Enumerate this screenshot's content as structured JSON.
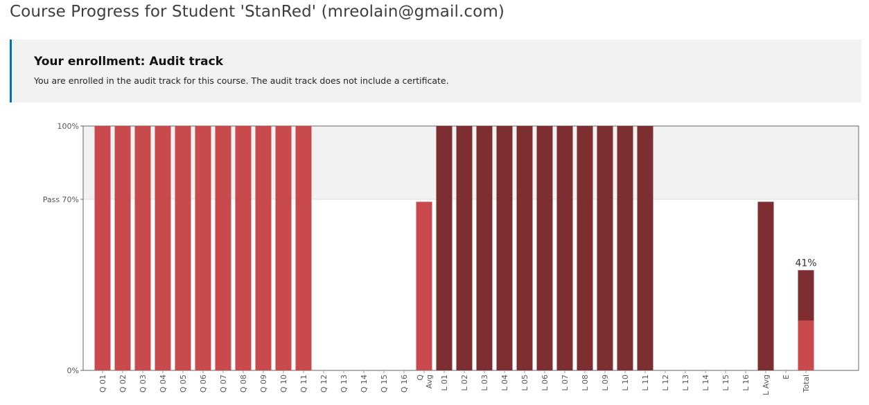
{
  "page": {
    "title": "Course Progress for Student 'StanRed' (mreolain@gmail.com)"
  },
  "enrollment": {
    "title": "Your enrollment: Audit track",
    "message": "You are enrolled in the audit track for this course. The audit track does not include a certificate."
  },
  "chart_data": {
    "type": "bar",
    "categories": [
      "Q 01",
      "Q 02",
      "Q 03",
      "Q 04",
      "Q 05",
      "Q 06",
      "Q 07",
      "Q 08",
      "Q 09",
      "Q 10",
      "Q 11",
      "Q 12",
      "Q 13",
      "Q 14",
      "Q 15",
      "Q 16",
      "Q Avg",
      "L 01",
      "L 02",
      "L 03",
      "L 04",
      "L 05",
      "L 06",
      "L 07",
      "L 08",
      "L 09",
      "L 10",
      "L 11",
      "L 12",
      "L 13",
      "L 14",
      "L 15",
      "L 16",
      "L Avg",
      "E",
      "Total"
    ],
    "values": [
      100,
      100,
      100,
      100,
      100,
      100,
      100,
      100,
      100,
      100,
      100,
      0,
      0,
      0,
      0,
      0,
      69,
      100,
      100,
      100,
      100,
      100,
      100,
      100,
      100,
      100,
      100,
      100,
      0,
      0,
      0,
      0,
      0,
      69,
      0,
      null
    ],
    "total": {
      "stack": [
        {
          "component": "Q",
          "value": 20.4,
          "color": "#c84a4c"
        },
        {
          "component": "L",
          "value": 20.6,
          "color": "#7d2e31"
        }
      ],
      "label": "41%"
    },
    "y_ticks": [
      {
        "value": 100,
        "label": "100%"
      },
      {
        "value": 70,
        "label": "Pass 70%"
      },
      {
        "value": 0,
        "label": "0%"
      }
    ],
    "ylim": [
      0,
      100
    ],
    "pass_threshold": 70,
    "colors": {
      "Q": "#c84a4c",
      "L": "#7d2e31",
      "pass_band": "#f2f2f2"
    },
    "legend": "none"
  }
}
